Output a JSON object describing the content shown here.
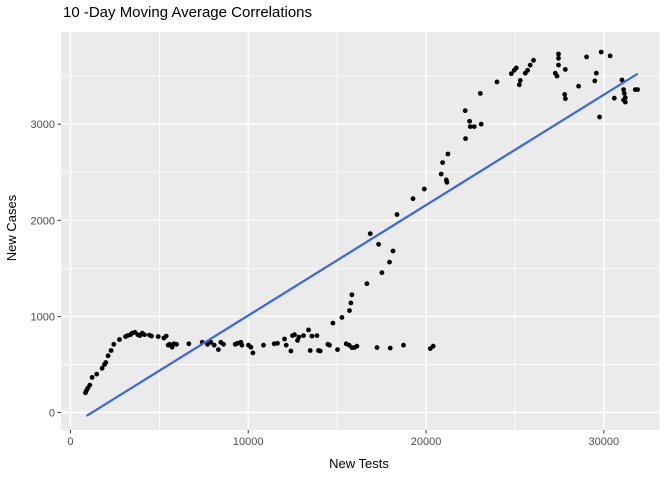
{
  "chart_data": {
    "type": "scatter",
    "title": "10 -Day Moving Average Correlations",
    "xlabel": "New Tests",
    "ylabel": "New Cases",
    "legend": "none",
    "grid": true,
    "x_domain": [
      -530,
      33130
    ],
    "y_domain": [
      -182,
      3959
    ],
    "x_ticks": [
      0,
      10000,
      20000,
      30000
    ],
    "x_tick_labels": [
      "0",
      "10000",
      "20000",
      "30000"
    ],
    "y_ticks": [
      0,
      1000,
      2000,
      3000
    ],
    "y_tick_labels": [
      "0",
      "1000",
      "2000",
      "3000"
    ],
    "x_minor_ticks": [
      5000,
      15000,
      25000
    ],
    "y_minor_ticks": [
      500,
      1500,
      2500,
      3500
    ],
    "styles": {
      "panel_bg": "#EBEBEB",
      "grid_color": "#FFFFFF",
      "point_color": "#000000",
      "point_radius": 2.4,
      "trend_color": "#3C66E0",
      "trend_width": 2.2,
      "tick_label_color": "#4D4D4D",
      "tick_mark_color": "#333333",
      "text_color": "#000000"
    },
    "trend_line": {
      "x1": 950,
      "y1": -30,
      "x2": 31860,
      "y2": 3520
    },
    "points": [
      [
        850,
        205
      ],
      [
        905,
        230
      ],
      [
        985,
        255
      ],
      [
        1090,
        285
      ],
      [
        1220,
        365
      ],
      [
        1480,
        400
      ],
      [
        1780,
        460
      ],
      [
        1915,
        500
      ],
      [
        1990,
        520
      ],
      [
        2120,
        590
      ],
      [
        2290,
        645
      ],
      [
        2440,
        710
      ],
      [
        2760,
        760
      ],
      [
        3095,
        790
      ],
      [
        3210,
        800
      ],
      [
        3375,
        810
      ],
      [
        3470,
        825
      ],
      [
        3625,
        835
      ],
      [
        3790,
        810
      ],
      [
        3905,
        800
      ],
      [
        4035,
        825
      ],
      [
        4165,
        810
      ],
      [
        4445,
        805
      ],
      [
        4560,
        795
      ],
      [
        4935,
        790
      ],
      [
        5255,
        775
      ],
      [
        5385,
        795
      ],
      [
        5500,
        700
      ],
      [
        5570,
        710
      ],
      [
        5720,
        680
      ],
      [
        5820,
        715
      ],
      [
        5965,
        710
      ],
      [
        6660,
        715
      ],
      [
        7410,
        730
      ],
      [
        7710,
        710
      ],
      [
        7900,
        730
      ],
      [
        8085,
        700
      ],
      [
        8325,
        655
      ],
      [
        8460,
        730
      ],
      [
        8610,
        710
      ],
      [
        9265,
        710
      ],
      [
        9395,
        720
      ],
      [
        9585,
        730
      ],
      [
        9645,
        700
      ],
      [
        10015,
        700
      ],
      [
        10150,
        680
      ],
      [
        10260,
        620
      ],
      [
        10860,
        700
      ],
      [
        11460,
        715
      ],
      [
        11645,
        720
      ],
      [
        12040,
        765
      ],
      [
        12135,
        700
      ],
      [
        12400,
        640
      ],
      [
        12490,
        800
      ],
      [
        12600,
        810
      ],
      [
        12770,
        750
      ],
      [
        12850,
        785
      ],
      [
        13110,
        800
      ],
      [
        13390,
        860
      ],
      [
        13485,
        645
      ],
      [
        13580,
        795
      ],
      [
        13860,
        800
      ],
      [
        13950,
        645
      ],
      [
        14045,
        640
      ],
      [
        14480,
        710
      ],
      [
        14570,
        700
      ],
      [
        15020,
        655
      ],
      [
        15510,
        715
      ],
      [
        15680,
        700
      ],
      [
        15830,
        675
      ],
      [
        15960,
        675
      ],
      [
        16110,
        690
      ],
      [
        17240,
        675
      ],
      [
        17985,
        670
      ],
      [
        18735,
        700
      ],
      [
        20240,
        665
      ],
      [
        20405,
        690
      ],
      [
        14760,
        930
      ],
      [
        15270,
        990
      ],
      [
        15695,
        1060
      ],
      [
        15775,
        1140
      ],
      [
        15830,
        1225
      ],
      [
        16675,
        1340
      ],
      [
        17520,
        1455
      ],
      [
        17945,
        1565
      ],
      [
        18140,
        1680
      ],
      [
        17330,
        1750
      ],
      [
        16860,
        1860
      ],
      [
        18365,
        2060
      ],
      [
        19265,
        2225
      ],
      [
        19900,
        2325
      ],
      [
        20855,
        2480
      ],
      [
        21140,
        2420
      ],
      [
        21175,
        2395
      ],
      [
        20930,
        2600
      ],
      [
        21230,
        2690
      ],
      [
        22220,
        2850
      ],
      [
        22205,
        3140
      ],
      [
        22450,
        3030
      ],
      [
        22490,
        2975
      ],
      [
        22710,
        2975
      ],
      [
        23105,
        3000
      ],
      [
        23050,
        3320
      ],
      [
        23990,
        3440
      ],
      [
        24795,
        3525
      ],
      [
        24960,
        3560
      ],
      [
        25075,
        3585
      ],
      [
        25245,
        3410
      ],
      [
        25300,
        3455
      ],
      [
        25580,
        3530
      ],
      [
        25710,
        3560
      ],
      [
        25860,
        3615
      ],
      [
        26045,
        3665
      ],
      [
        27450,
        3730
      ],
      [
        27450,
        3685
      ],
      [
        27450,
        3615
      ],
      [
        27830,
        3570
      ],
      [
        27270,
        3530
      ],
      [
        27365,
        3500
      ],
      [
        27800,
        3310
      ],
      [
        27840,
        3265
      ],
      [
        28580,
        3395
      ],
      [
        29030,
        3700
      ],
      [
        29490,
        3450
      ],
      [
        29575,
        3530
      ],
      [
        29850,
        3750
      ],
      [
        30350,
        3710
      ],
      [
        29760,
        3075
      ],
      [
        30590,
        3270
      ],
      [
        31020,
        3460
      ],
      [
        31110,
        3360
      ],
      [
        31150,
        3320
      ],
      [
        31110,
        3250
      ],
      [
        31205,
        3275
      ],
      [
        31205,
        3230
      ],
      [
        31770,
        3360
      ],
      [
        31900,
        3360
      ]
    ]
  }
}
